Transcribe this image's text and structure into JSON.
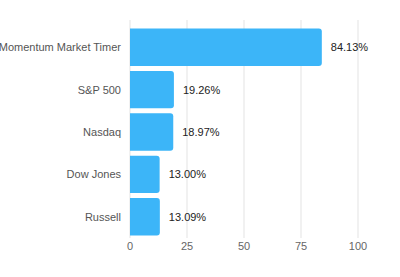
{
  "chart_data": {
    "type": "bar",
    "orientation": "horizontal",
    "categories": [
      "Momentum Market Timer",
      "S&P 500",
      "Nasdaq",
      "Dow Jones",
      "Russell"
    ],
    "values": [
      84.13,
      19.26,
      18.97,
      13.0,
      13.09
    ],
    "value_labels": [
      "84.13%",
      "19.26%",
      "18.97%",
      "13.00%",
      "13.09%"
    ],
    "color": "#3cb5f8",
    "xlim": [
      0,
      100
    ],
    "xticks": [
      0,
      25,
      50,
      75,
      100
    ],
    "grid": true,
    "data_labels": true
  }
}
